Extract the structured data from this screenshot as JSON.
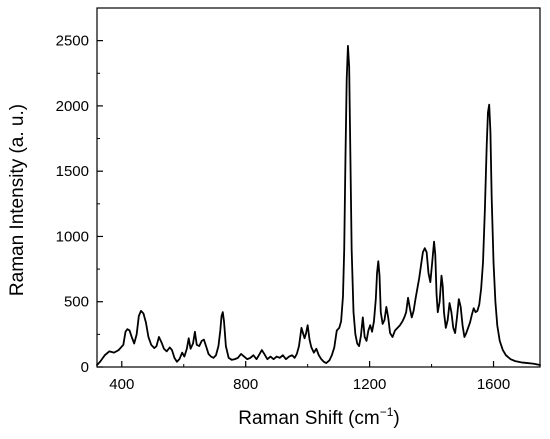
{
  "chart_data": {
    "type": "line",
    "title": "",
    "xlabel": "Raman Shift (cm",
    "xlabel_superscript": "−1",
    "xlabel_suffix": ")",
    "ylabel": "Raman Intensity (a. u.)",
    "xlim": [
      320,
      1750
    ],
    "ylim": [
      0,
      2750
    ],
    "x_ticks": [
      400,
      800,
      1200,
      1600
    ],
    "y_ticks": [
      0,
      500,
      1000,
      1500,
      2000,
      2500
    ],
    "grid": false,
    "legend": "none",
    "line_color": "#000000",
    "series": [
      {
        "points": [
          [
            320,
            15
          ],
          [
            330,
            40
          ],
          [
            345,
            90
          ],
          [
            360,
            120
          ],
          [
            375,
            110
          ],
          [
            390,
            130
          ],
          [
            405,
            170
          ],
          [
            412,
            270
          ],
          [
            418,
            290
          ],
          [
            425,
            280
          ],
          [
            432,
            230
          ],
          [
            440,
            180
          ],
          [
            448,
            250
          ],
          [
            455,
            390
          ],
          [
            462,
            430
          ],
          [
            470,
            410
          ],
          [
            478,
            340
          ],
          [
            486,
            230
          ],
          [
            495,
            170
          ],
          [
            505,
            145
          ],
          [
            512,
            160
          ],
          [
            520,
            230
          ],
          [
            528,
            190
          ],
          [
            536,
            140
          ],
          [
            545,
            120
          ],
          [
            555,
            150
          ],
          [
            562,
            130
          ],
          [
            570,
            70
          ],
          [
            578,
            40
          ],
          [
            586,
            60
          ],
          [
            595,
            110
          ],
          [
            602,
            80
          ],
          [
            610,
            140
          ],
          [
            616,
            220
          ],
          [
            622,
            140
          ],
          [
            630,
            180
          ],
          [
            636,
            270
          ],
          [
            642,
            170
          ],
          [
            650,
            160
          ],
          [
            658,
            200
          ],
          [
            665,
            210
          ],
          [
            672,
            160
          ],
          [
            680,
            100
          ],
          [
            688,
            80
          ],
          [
            696,
            70
          ],
          [
            704,
            90
          ],
          [
            712,
            160
          ],
          [
            718,
            280
          ],
          [
            722,
            390
          ],
          [
            726,
            420
          ],
          [
            730,
            350
          ],
          [
            736,
            160
          ],
          [
            745,
            70
          ],
          [
            755,
            55
          ],
          [
            765,
            60
          ],
          [
            775,
            70
          ],
          [
            785,
            100
          ],
          [
            795,
            80
          ],
          [
            805,
            60
          ],
          [
            815,
            70
          ],
          [
            825,
            90
          ],
          [
            835,
            60
          ],
          [
            845,
            100
          ],
          [
            852,
            130
          ],
          [
            860,
            100
          ],
          [
            870,
            60
          ],
          [
            880,
            80
          ],
          [
            890,
            60
          ],
          [
            900,
            80
          ],
          [
            910,
            70
          ],
          [
            920,
            90
          ],
          [
            930,
            60
          ],
          [
            940,
            80
          ],
          [
            950,
            90
          ],
          [
            958,
            70
          ],
          [
            965,
            100
          ],
          [
            972,
            160
          ],
          [
            980,
            300
          ],
          [
            985,
            260
          ],
          [
            990,
            220
          ],
          [
            995,
            260
          ],
          [
            1000,
            320
          ],
          [
            1006,
            210
          ],
          [
            1012,
            150
          ],
          [
            1020,
            110
          ],
          [
            1028,
            140
          ],
          [
            1036,
            90
          ],
          [
            1044,
            60
          ],
          [
            1052,
            40
          ],
          [
            1060,
            30
          ],
          [
            1070,
            50
          ],
          [
            1078,
            90
          ],
          [
            1086,
            150
          ],
          [
            1094,
            280
          ],
          [
            1102,
            300
          ],
          [
            1108,
            350
          ],
          [
            1114,
            540
          ],
          [
            1118,
            900
          ],
          [
            1122,
            1600
          ],
          [
            1126,
            2200
          ],
          [
            1130,
            2460
          ],
          [
            1134,
            2300
          ],
          [
            1138,
            1600
          ],
          [
            1142,
            900
          ],
          [
            1148,
            420
          ],
          [
            1154,
            250
          ],
          [
            1160,
            180
          ],
          [
            1166,
            160
          ],
          [
            1172,
            240
          ],
          [
            1178,
            380
          ],
          [
            1184,
            230
          ],
          [
            1190,
            200
          ],
          [
            1196,
            280
          ],
          [
            1202,
            320
          ],
          [
            1208,
            270
          ],
          [
            1214,
            350
          ],
          [
            1220,
            520
          ],
          [
            1224,
            720
          ],
          [
            1228,
            810
          ],
          [
            1232,
            700
          ],
          [
            1236,
            420
          ],
          [
            1242,
            330
          ],
          [
            1248,
            360
          ],
          [
            1254,
            460
          ],
          [
            1260,
            380
          ],
          [
            1266,
            260
          ],
          [
            1274,
            230
          ],
          [
            1282,
            280
          ],
          [
            1290,
            300
          ],
          [
            1298,
            320
          ],
          [
            1306,
            350
          ],
          [
            1312,
            380
          ],
          [
            1318,
            420
          ],
          [
            1324,
            530
          ],
          [
            1330,
            450
          ],
          [
            1336,
            380
          ],
          [
            1342,
            430
          ],
          [
            1348,
            520
          ],
          [
            1354,
            600
          ],
          [
            1360,
            680
          ],
          [
            1366,
            780
          ],
          [
            1372,
            880
          ],
          [
            1378,
            910
          ],
          [
            1384,
            880
          ],
          [
            1390,
            720
          ],
          [
            1396,
            650
          ],
          [
            1402,
            800
          ],
          [
            1408,
            960
          ],
          [
            1412,
            860
          ],
          [
            1416,
            560
          ],
          [
            1420,
            420
          ],
          [
            1426,
            500
          ],
          [
            1432,
            700
          ],
          [
            1436,
            620
          ],
          [
            1440,
            420
          ],
          [
            1446,
            300
          ],
          [
            1452,
            360
          ],
          [
            1458,
            490
          ],
          [
            1464,
            420
          ],
          [
            1470,
            300
          ],
          [
            1476,
            260
          ],
          [
            1482,
            380
          ],
          [
            1488,
            520
          ],
          [
            1494,
            460
          ],
          [
            1500,
            320
          ],
          [
            1506,
            230
          ],
          [
            1512,
            260
          ],
          [
            1518,
            300
          ],
          [
            1524,
            340
          ],
          [
            1530,
            400
          ],
          [
            1536,
            450
          ],
          [
            1542,
            420
          ],
          [
            1548,
            430
          ],
          [
            1554,
            480
          ],
          [
            1560,
            600
          ],
          [
            1566,
            800
          ],
          [
            1572,
            1200
          ],
          [
            1578,
            1700
          ],
          [
            1582,
            1950
          ],
          [
            1586,
            2010
          ],
          [
            1590,
            1800
          ],
          [
            1594,
            1300
          ],
          [
            1600,
            800
          ],
          [
            1606,
            500
          ],
          [
            1612,
            320
          ],
          [
            1620,
            200
          ],
          [
            1630,
            130
          ],
          [
            1640,
            90
          ],
          [
            1655,
            60
          ],
          [
            1670,
            45
          ],
          [
            1690,
            35
          ],
          [
            1710,
            30
          ],
          [
            1730,
            25
          ],
          [
            1750,
            15
          ]
        ]
      }
    ]
  }
}
